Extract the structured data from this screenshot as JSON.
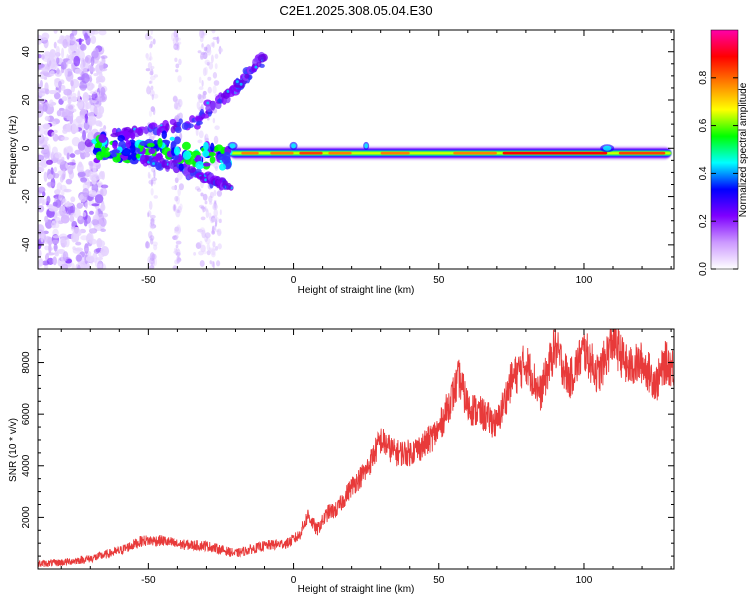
{
  "title": "C2E1.2025.308.05.04.E30",
  "chart_data": [
    {
      "type": "heatmap",
      "xlabel": "Height of straight line (km)",
      "ylabel": "Frequency (Hz)",
      "xlim": [
        -88,
        131
      ],
      "ylim": [
        -50,
        49
      ],
      "xticks": [
        "-50",
        "0",
        "50",
        "100"
      ],
      "yticks": [
        "-40",
        "-20",
        "0",
        "20",
        "40"
      ],
      "xtick_values": [
        -50,
        0,
        50,
        100
      ],
      "ytick_values": [
        -40,
        -20,
        0,
        20,
        40
      ],
      "colorbar": {
        "label": "Normalized spectral amplitude",
        "range": [
          0,
          1
        ],
        "ticks": [
          "0.0",
          "0.2",
          "0.4",
          "0.6",
          "0.8"
        ],
        "tick_values": [
          0.0,
          0.2,
          0.4,
          0.6,
          0.8
        ],
        "colormap": [
          "#ffffff",
          "#cc99ff",
          "#7f00ff",
          "#0000ff",
          "#00ffff",
          "#00ff00",
          "#ffff00",
          "#ff8000",
          "#ff0000",
          "#ff00aa"
        ]
      },
      "features": [
        {
          "name": "main-band",
          "x_range": [
            -68,
            130
          ],
          "frequency_hz": -2
        },
        {
          "name": "upper-diagonal",
          "points": [
            [
              -62,
              6
            ],
            [
              -35,
              10
            ],
            [
              -20,
              25
            ],
            [
              -10,
              38
            ]
          ]
        },
        {
          "name": "lower-diagonal",
          "points": [
            [
              -62,
              -2
            ],
            [
              -45,
              -6
            ],
            [
              -30,
              -12
            ],
            [
              -22,
              -16
            ]
          ]
        }
      ]
    },
    {
      "type": "line",
      "xlabel": "Height of straight line (km)",
      "ylabel": "SNR (10 * v/v)",
      "xlim": [
        -88,
        131
      ],
      "ylim": [
        0,
        9300
      ],
      "xticks": [
        "-50",
        "0",
        "50",
        "100"
      ],
      "yticks": [
        "2000",
        "4000",
        "6000",
        "8000"
      ],
      "xtick_values": [
        -50,
        0,
        50,
        100
      ],
      "ytick_values": [
        2000,
        4000,
        6000,
        8000
      ],
      "color": "#e83a3a",
      "x": [
        -88,
        -80,
        -70,
        -60,
        -52,
        -45,
        -40,
        -30,
        -20,
        -10,
        -2,
        2,
        5,
        8,
        12,
        15,
        20,
        25,
        30,
        35,
        40,
        45,
        50,
        55,
        57,
        60,
        65,
        70,
        75,
        80,
        85,
        90,
        95,
        100,
        105,
        110,
        115,
        120,
        125,
        128,
        131
      ],
      "y": [
        200,
        250,
        400,
        700,
        1100,
        1100,
        950,
        900,
        600,
        900,
        1000,
        1300,
        2100,
        1500,
        2200,
        2300,
        3200,
        3800,
        5000,
        4500,
        4500,
        4800,
        5400,
        6800,
        7400,
        6300,
        6000,
        5600,
        7300,
        8000,
        6800,
        8600,
        7300,
        8500,
        7500,
        8900,
        7800,
        8000,
        7200,
        8000,
        7800
      ]
    }
  ]
}
